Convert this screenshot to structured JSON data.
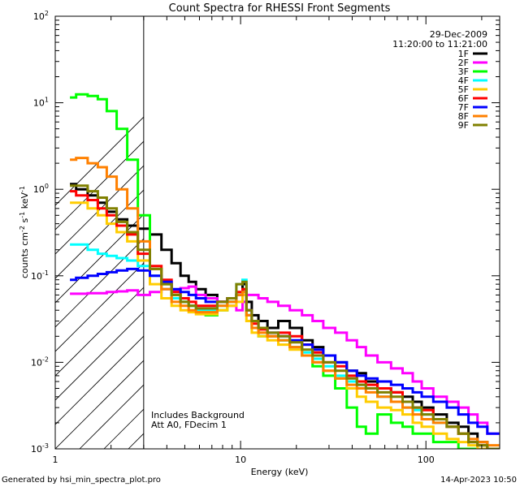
{
  "chart_data": {
    "type": "line",
    "title": "Count Spectra for RHESSI Front Segments",
    "date": "29-Dec-2009",
    "time_range": "11:20:00 to 11:21:00",
    "xlabel": "Energy (keV)",
    "ylabel_parts": [
      "counts cm",
      "-2",
      " s",
      "-1",
      " keV",
      "-1"
    ],
    "xscale": "log",
    "yscale": "log",
    "xlim": [
      1,
      250
    ],
    "ylim": [
      0.001,
      100
    ],
    "x_ticks": [
      {
        "value": 1,
        "label": "1"
      },
      {
        "value": 10,
        "label": "10"
      },
      {
        "value": 100,
        "label": "100"
      }
    ],
    "y_ticks": [
      {
        "value": 0.001,
        "base": "10",
        "exp": "-3"
      },
      {
        "value": 0.01,
        "base": "10",
        "exp": "-2"
      },
      {
        "value": 0.1,
        "base": "10",
        "exp": "-1"
      },
      {
        "value": 1,
        "base": "10",
        "exp": "0"
      },
      {
        "value": 10,
        "base": "10",
        "exp": "1"
      },
      {
        "value": 100,
        "base": "10",
        "exp": "2"
      }
    ],
    "excluded_region": {
      "xmin": 1,
      "xmax": 3
    },
    "annotations": [
      "Includes Background",
      "Att A0, FDecim 1"
    ],
    "legend_position": "top-right",
    "x": [
      1.2,
      1.4,
      1.6,
      1.8,
      2.0,
      2.3,
      2.6,
      3.0,
      3.5,
      4.0,
      4.5,
      5.0,
      5.5,
      6.0,
      7.0,
      8.0,
      9.0,
      10.0,
      10.5,
      11.0,
      12.0,
      13.0,
      15.0,
      17.0,
      20.0,
      23.0,
      26.0,
      30.0,
      35.0,
      40.0,
      45.0,
      50.0,
      60.0,
      70.0,
      80.0,
      90.0,
      100.0,
      120.0,
      140.0,
      160.0,
      180.0,
      200.0,
      230.0
    ],
    "series": [
      {
        "name": "1F",
        "color": "#000000",
        "values": [
          1.15,
          1.0,
          0.85,
          0.7,
          0.55,
          0.45,
          0.38,
          0.35,
          0.3,
          0.2,
          0.14,
          0.1,
          0.085,
          0.07,
          0.06,
          0.05,
          0.05,
          0.06,
          0.08,
          0.05,
          0.035,
          0.03,
          0.025,
          0.03,
          0.025,
          0.018,
          0.015,
          0.012,
          0.01,
          0.008,
          0.0075,
          0.006,
          0.005,
          0.0045,
          0.004,
          0.0035,
          0.003,
          0.0025,
          0.002,
          0.0018,
          0.0015,
          0.0012,
          0.001
        ]
      },
      {
        "name": "2F",
        "color": "#ff00ff",
        "values": [
          0.062,
          0.062,
          0.063,
          0.063,
          0.065,
          0.066,
          0.068,
          0.06,
          0.065,
          0.07,
          0.068,
          0.072,
          0.075,
          0.06,
          0.055,
          0.05,
          0.045,
          0.04,
          0.05,
          0.06,
          0.06,
          0.055,
          0.05,
          0.045,
          0.04,
          0.035,
          0.03,
          0.025,
          0.022,
          0.018,
          0.015,
          0.012,
          0.01,
          0.0085,
          0.0075,
          0.006,
          0.005,
          0.004,
          0.0035,
          0.003,
          0.0025,
          0.002,
          0.0015
        ]
      },
      {
        "name": "3F",
        "color": "#00ff00",
        "values": [
          11.5,
          12.5,
          12.0,
          11.0,
          8.0,
          5.0,
          2.2,
          0.5,
          0.12,
          0.08,
          0.06,
          0.05,
          0.045,
          0.04,
          0.035,
          0.04,
          0.05,
          0.06,
          0.07,
          0.035,
          0.025,
          0.02,
          0.02,
          0.018,
          0.015,
          0.012,
          0.009,
          0.007,
          0.005,
          0.003,
          0.0018,
          0.0015,
          0.0025,
          0.002,
          0.0018,
          0.0015,
          0.0015,
          0.0012,
          0.0012,
          0.001,
          0.001,
          0.001,
          0.001
        ]
      },
      {
        "name": "4F",
        "color": "#00ffff",
        "values": [
          0.23,
          0.23,
          0.2,
          0.18,
          0.17,
          0.16,
          0.15,
          0.13,
          0.1,
          0.07,
          0.055,
          0.05,
          0.045,
          0.04,
          0.04,
          0.045,
          0.05,
          0.08,
          0.09,
          0.035,
          0.025,
          0.02,
          0.02,
          0.018,
          0.015,
          0.013,
          0.011,
          0.009,
          0.007,
          0.006,
          0.0055,
          0.005,
          0.004,
          0.0035,
          0.003,
          0.0028,
          0.0025,
          0.002,
          0.0018,
          0.0015,
          0.0012,
          0.0011,
          0.001
        ]
      },
      {
        "name": "5F",
        "color": "#ffcc00",
        "values": [
          0.7,
          0.7,
          0.6,
          0.5,
          0.4,
          0.32,
          0.25,
          0.15,
          0.08,
          0.055,
          0.045,
          0.04,
          0.038,
          0.036,
          0.036,
          0.04,
          0.045,
          0.05,
          0.06,
          0.03,
          0.022,
          0.02,
          0.018,
          0.016,
          0.014,
          0.012,
          0.01,
          0.008,
          0.0065,
          0.005,
          0.004,
          0.0035,
          0.003,
          0.0028,
          0.0025,
          0.002,
          0.0018,
          0.0015,
          0.0013,
          0.0012,
          0.0011,
          0.001,
          0.001
        ]
      },
      {
        "name": "6F",
        "color": "#ff0000",
        "values": [
          0.95,
          0.85,
          0.75,
          0.6,
          0.5,
          0.38,
          0.3,
          0.18,
          0.13,
          0.09,
          0.065,
          0.055,
          0.05,
          0.045,
          0.045,
          0.05,
          0.055,
          0.065,
          0.07,
          0.04,
          0.028,
          0.024,
          0.02,
          0.022,
          0.02,
          0.016,
          0.013,
          0.01,
          0.009,
          0.007,
          0.006,
          0.0055,
          0.005,
          0.0045,
          0.0035,
          0.003,
          0.0028,
          0.0022,
          0.0018,
          0.0015,
          0.0012,
          0.0011,
          0.001
        ]
      },
      {
        "name": "7F",
        "color": "#0000ff",
        "values": [
          0.09,
          0.095,
          0.1,
          0.105,
          0.11,
          0.115,
          0.12,
          0.115,
          0.1,
          0.085,
          0.07,
          0.065,
          0.06,
          0.055,
          0.05,
          0.05,
          0.055,
          0.06,
          0.065,
          0.04,
          0.03,
          0.025,
          0.022,
          0.02,
          0.018,
          0.016,
          0.014,
          0.012,
          0.01,
          0.008,
          0.007,
          0.0065,
          0.006,
          0.0055,
          0.005,
          0.0045,
          0.004,
          0.0035,
          0.003,
          0.0025,
          0.002,
          0.0018,
          0.0015
        ]
      },
      {
        "name": "8F",
        "color": "#ff8000",
        "values": [
          2.2,
          2.3,
          2.0,
          1.8,
          1.4,
          1.0,
          0.6,
          0.25,
          0.12,
          0.07,
          0.05,
          0.045,
          0.04,
          0.038,
          0.038,
          0.045,
          0.05,
          0.06,
          0.065,
          0.035,
          0.025,
          0.022,
          0.02,
          0.018,
          0.015,
          0.012,
          0.01,
          0.008,
          0.0065,
          0.0055,
          0.005,
          0.0045,
          0.004,
          0.0035,
          0.003,
          0.0025,
          0.0022,
          0.002,
          0.0018,
          0.0015,
          0.0013,
          0.0012,
          0.0011
        ]
      },
      {
        "name": "9F",
        "color": "#808000",
        "values": [
          1.1,
          1.1,
          0.95,
          0.8,
          0.6,
          0.42,
          0.32,
          0.2,
          0.12,
          0.08,
          0.06,
          0.05,
          0.045,
          0.042,
          0.042,
          0.05,
          0.055,
          0.08,
          0.085,
          0.04,
          0.03,
          0.025,
          0.022,
          0.02,
          0.017,
          0.014,
          0.012,
          0.01,
          0.008,
          0.0065,
          0.0055,
          0.005,
          0.0045,
          0.004,
          0.0035,
          0.003,
          0.0025,
          0.0022,
          0.0018,
          0.0015,
          0.0012,
          0.0011,
          0.001
        ]
      }
    ]
  },
  "footer": {
    "left": "Generated by hsi_min_spectra_plot.pro",
    "right": "14-Apr-2023 10:50"
  }
}
